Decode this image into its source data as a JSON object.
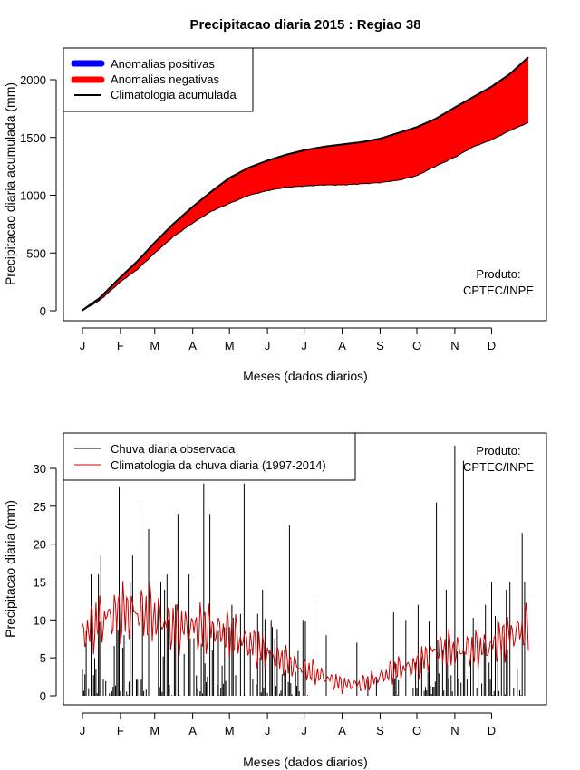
{
  "chart_data": [
    {
      "type": "area",
      "title": "Precipitacao diaria 2015 : Regiao 38",
      "xlabel": "Meses (dados diarios)",
      "ylabel": "Precipitacao diaria acumulada (mm)",
      "months": [
        "J",
        "F",
        "M",
        "A",
        "M",
        "J",
        "J",
        "A",
        "S",
        "O",
        "N",
        "D"
      ],
      "month_start_day": [
        1,
        32,
        60,
        91,
        121,
        152,
        182,
        213,
        244,
        274,
        305,
        335
      ],
      "xlim": [
        1,
        365
      ],
      "ylim": [
        0,
        2200
      ],
      "yticks": [
        "0",
        "500",
        "1000",
        "1500",
        "2000"
      ],
      "ytick_values": [
        0,
        500,
        1000,
        1500,
        2000
      ],
      "legend_location": "top-left",
      "legend": [
        {
          "label": "Anomalias positivas",
          "color": "#0000ff"
        },
        {
          "label": "Anomalias negativas",
          "color": "#ff0000"
        },
        {
          "label": "Climatologia acumulada",
          "color": "#000000"
        }
      ],
      "annotation": [
        "Produto:",
        "CPTEC/INPE"
      ],
      "climatology_points": [
        [
          1,
          5
        ],
        [
          15,
          110
        ],
        [
          32,
          290
        ],
        [
          46,
          430
        ],
        [
          60,
          590
        ],
        [
          75,
          750
        ],
        [
          91,
          900
        ],
        [
          106,
          1030
        ],
        [
          121,
          1150
        ],
        [
          137,
          1240
        ],
        [
          152,
          1300
        ],
        [
          167,
          1350
        ],
        [
          182,
          1390
        ],
        [
          198,
          1420
        ],
        [
          213,
          1440
        ],
        [
          229,
          1460
        ],
        [
          244,
          1490
        ],
        [
          259,
          1540
        ],
        [
          274,
          1590
        ],
        [
          289,
          1660
        ],
        [
          305,
          1760
        ],
        [
          320,
          1850
        ],
        [
          335,
          1940
        ],
        [
          350,
          2050
        ],
        [
          365,
          2195
        ]
      ],
      "observed_points": [
        [
          1,
          2
        ],
        [
          15,
          90
        ],
        [
          32,
          250
        ],
        [
          46,
          360
        ],
        [
          60,
          500
        ],
        [
          75,
          640
        ],
        [
          91,
          760
        ],
        [
          106,
          860
        ],
        [
          121,
          930
        ],
        [
          137,
          1000
        ],
        [
          152,
          1040
        ],
        [
          167,
          1070
        ],
        [
          182,
          1080
        ],
        [
          198,
          1090
        ],
        [
          213,
          1090
        ],
        [
          229,
          1100
        ],
        [
          244,
          1110
        ],
        [
          259,
          1130
        ],
        [
          274,
          1170
        ],
        [
          289,
          1250
        ],
        [
          305,
          1330
        ],
        [
          320,
          1420
        ],
        [
          335,
          1480
        ],
        [
          350,
          1560
        ],
        [
          365,
          1630
        ]
      ]
    },
    {
      "type": "line",
      "xlabel": "Meses (dados diarios)",
      "ylabel": "Precipitacao diaria (mm)",
      "months": [
        "J",
        "F",
        "M",
        "A",
        "M",
        "J",
        "J",
        "A",
        "S",
        "O",
        "N",
        "D"
      ],
      "month_start_day": [
        1,
        32,
        60,
        91,
        121,
        152,
        182,
        213,
        244,
        274,
        305,
        335
      ],
      "xlim": [
        1,
        365
      ],
      "ylim": [
        0,
        33
      ],
      "yticks": [
        "0",
        "5",
        "10",
        "15",
        "20",
        "25",
        "30"
      ],
      "ytick_values": [
        0,
        5,
        10,
        15,
        20,
        25,
        30
      ],
      "legend_location": "top-left",
      "legend": [
        {
          "label": "Chuva diaria observada",
          "color": "#000000"
        },
        {
          "label": "Climatologia da chuva diaria (1997-2014)",
          "color": "#cc0000"
        }
      ],
      "annotation": [
        "Produto:",
        "CPTEC/INPE"
      ],
      "climatology_anchor_days": [
        1,
        16,
        32,
        46,
        60,
        75,
        91,
        106,
        121,
        137,
        152,
        167,
        182,
        198,
        213,
        229,
        244,
        259,
        274,
        289,
        305,
        320,
        335,
        350,
        365
      ],
      "climatology_anchor_values": [
        8,
        10,
        11,
        11,
        10.5,
        9,
        9,
        9,
        8,
        7,
        5.5,
        4.5,
        3.5,
        2.5,
        1.5,
        1.5,
        2.5,
        3.5,
        4,
        6,
        6,
        6,
        6.5,
        8,
        9
      ],
      "observed_peaks": [
        [
          8,
          16
        ],
        [
          14,
          16
        ],
        [
          16,
          18.5
        ],
        [
          31,
          27.5
        ],
        [
          35,
          8
        ],
        [
          40,
          15
        ],
        [
          42,
          18.5
        ],
        [
          48,
          25
        ],
        [
          50,
          12
        ],
        [
          55,
          22
        ],
        [
          63,
          12
        ],
        [
          65,
          15
        ],
        [
          68,
          14
        ],
        [
          70,
          16
        ],
        [
          77,
          12
        ],
        [
          79,
          24
        ],
        [
          88,
          16
        ],
        [
          100,
          28
        ],
        [
          105,
          24
        ],
        [
          123,
          12
        ],
        [
          133,
          28
        ],
        [
          148,
          14
        ],
        [
          155,
          10
        ],
        [
          170,
          22.5
        ],
        [
          181,
          10
        ],
        [
          190,
          13
        ],
        [
          200,
          8
        ],
        [
          225,
          7
        ],
        [
          255,
          11
        ],
        [
          265,
          10
        ],
        [
          275,
          12
        ],
        [
          290,
          25.5
        ],
        [
          298,
          14
        ],
        [
          305,
          33
        ],
        [
          312,
          31
        ],
        [
          330,
          12
        ],
        [
          335,
          15
        ],
        [
          340,
          10
        ],
        [
          347,
          14
        ],
        [
          350,
          15
        ],
        [
          360,
          21.5
        ],
        [
          362,
          15
        ]
      ]
    }
  ]
}
